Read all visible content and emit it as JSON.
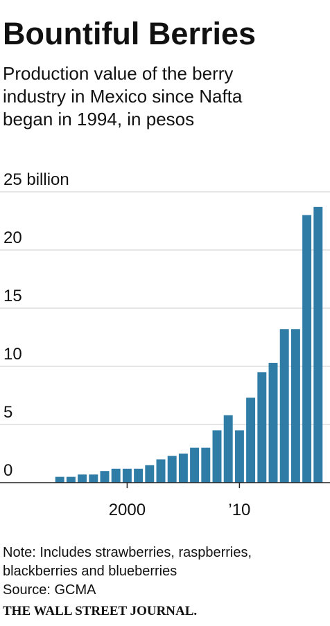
{
  "chart_data": {
    "type": "bar",
    "title": "Bountiful Berries",
    "subtitle": [
      "Production value of the berry",
      "industry in Mexico since Nafta",
      "began in 1994, in pesos"
    ],
    "x": [
      1994,
      1995,
      1996,
      1997,
      1998,
      1999,
      2000,
      2001,
      2002,
      2003,
      2004,
      2005,
      2006,
      2007,
      2008,
      2009,
      2010,
      2011,
      2012,
      2013,
      2014,
      2015,
      2016,
      2017
    ],
    "values": [
      0.5,
      0.5,
      0.7,
      0.7,
      1.0,
      1.2,
      1.2,
      1.2,
      1.5,
      2.0,
      2.3,
      2.5,
      3.0,
      3.0,
      4.5,
      5.8,
      4.5,
      7.3,
      9.5,
      10.3,
      13.2,
      13.2,
      23.0,
      23.7
    ],
    "color": "#2f7ca6",
    "xlim": [
      1993,
      2018
    ],
    "xticks": [
      2000,
      {
        "value": 2010,
        "label": "’10"
      }
    ],
    "ylim": [
      0,
      25
    ],
    "yticks": [
      0,
      5,
      10,
      15,
      20,
      {
        "value": 25,
        "label": "25 billion"
      }
    ],
    "grid": true,
    "note": [
      "Note: Includes strawberries, raspberries,",
      "blackberries and blueberries",
      "Source: GCMA"
    ],
    "credit": "THE WALL STREET JOURNAL."
  }
}
